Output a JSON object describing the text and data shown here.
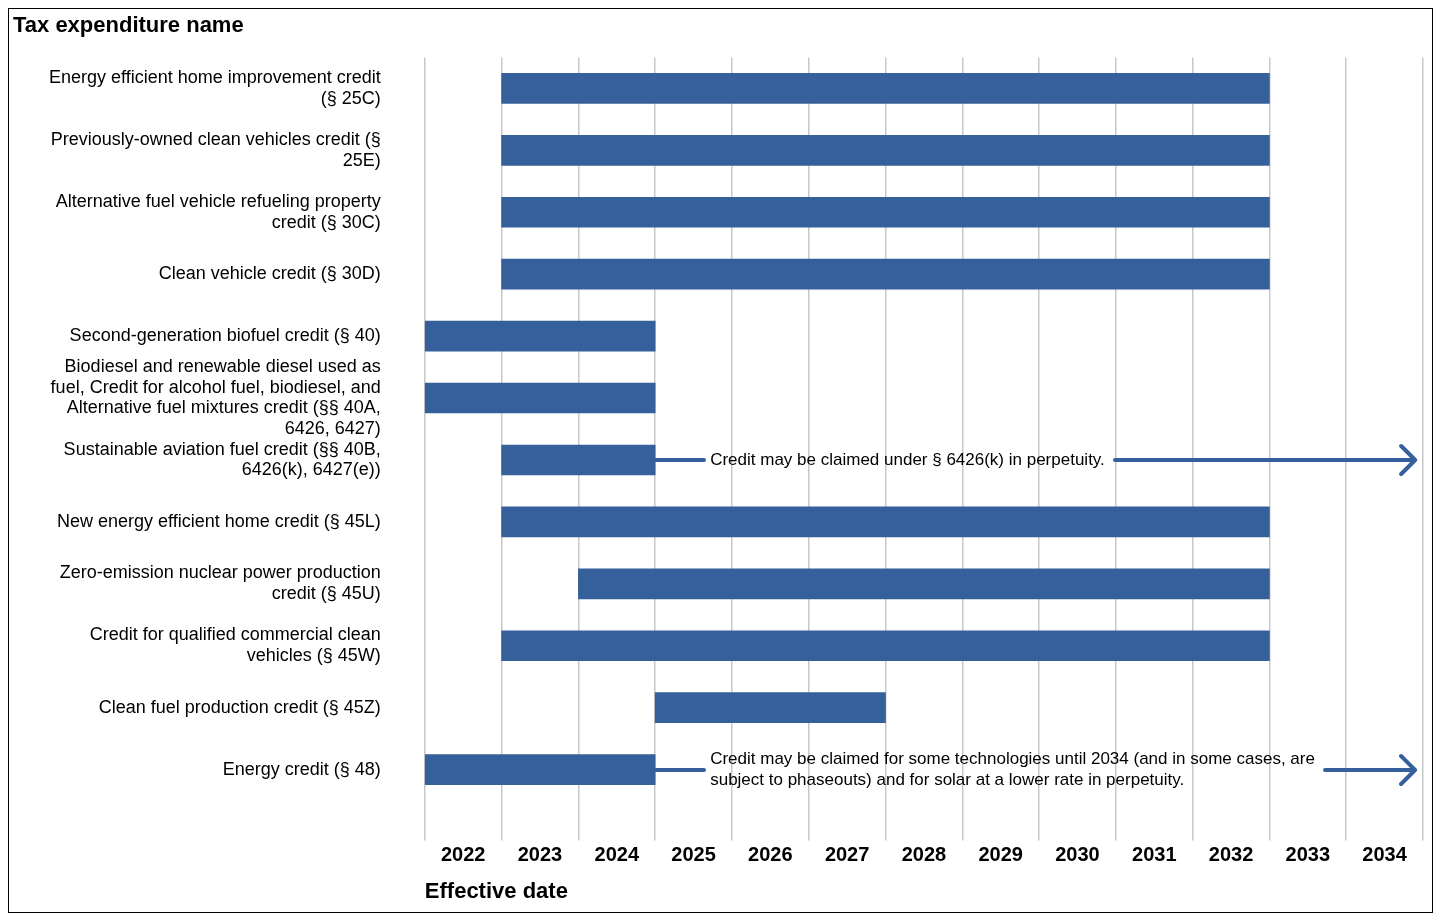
{
  "chart_data": {
    "type": "bar",
    "orientation": "horizontal",
    "title": "Tax expenditure name",
    "xlabel": "Effective date",
    "categories": [
      "Energy efficient home improvement credit (§ 25C)",
      "Previously-owned clean vehicles credit (§ 25E)",
      "Alternative fuel vehicle refueling property credit (§ 30C)",
      "Clean vehicle credit (§ 30D)",
      "Second-generation biofuel credit (§ 40)",
      "Biodiesel and renewable diesel used as fuel, Credit for alcohol fuel, biodiesel, and Alternative fuel mixtures credit (§§ 40A, 6426, 6427)",
      "Sustainable aviation fuel credit (§§ 40B, 6426(k), 6427(e))",
      "New energy efficient home credit (§ 45L)",
      "Zero-emission nuclear power production credit (§ 45U)",
      "Credit for qualified commercial clean vehicles (§ 45W)",
      "Clean fuel production credit (§ 45Z)",
      "Energy credit (§ 48)"
    ],
    "base": [
      2023,
      2023,
      2023,
      2023,
      2022,
      2022,
      2023,
      2023,
      2024,
      2023,
      2025,
      2022
    ],
    "values": [
      10,
      10,
      10,
      10,
      3,
      3,
      2,
      10,
      9,
      10,
      3,
      3
    ],
    "color": "#36609b",
    "xlim": [
      2022,
      2035
    ],
    "xticks": [
      {
        "value": 2022,
        "label": null
      },
      {
        "value": 2022.5,
        "label": "2022"
      },
      {
        "value": 2023,
        "label": null
      },
      {
        "value": 2023.5,
        "label": "2023"
      },
      {
        "value": 2024,
        "label": null
      },
      {
        "value": 2024.5,
        "label": "2024"
      },
      {
        "value": 2025,
        "label": null
      },
      {
        "value": 2025.5,
        "label": "2025"
      },
      {
        "value": 2026,
        "label": null
      },
      {
        "value": 2026.5,
        "label": "2026"
      },
      {
        "value": 2027,
        "label": null
      },
      {
        "value": 2027.5,
        "label": "2027"
      },
      {
        "value": 2028,
        "label": null
      },
      {
        "value": 2028.5,
        "label": "2028"
      },
      {
        "value": 2029,
        "label": null
      },
      {
        "value": 2029.5,
        "label": "2029"
      },
      {
        "value": 2030,
        "label": null
      },
      {
        "value": 2030.5,
        "label": "2030"
      },
      {
        "value": 2031,
        "label": null
      },
      {
        "value": 2031.5,
        "label": "2031"
      },
      {
        "value": 2032,
        "label": null
      },
      {
        "value": 2032.5,
        "label": "2032"
      },
      {
        "value": 2033,
        "label": null
      },
      {
        "value": 2033.5,
        "label": "2033"
      },
      {
        "value": 2034,
        "label": null
      },
      {
        "value": 2034.5,
        "label": "2034"
      },
      {
        "value": 2035,
        "label": null
      }
    ],
    "grid": "x",
    "legend": false,
    "annotations": [
      "Credit may be claimed under § 6426(k) in perpetuity.",
      "Credit may be claimed for some technologies until 2034 (and in some cases, are subject to phaseouts) and for solar at a lower rate in perpetuity."
    ]
  }
}
